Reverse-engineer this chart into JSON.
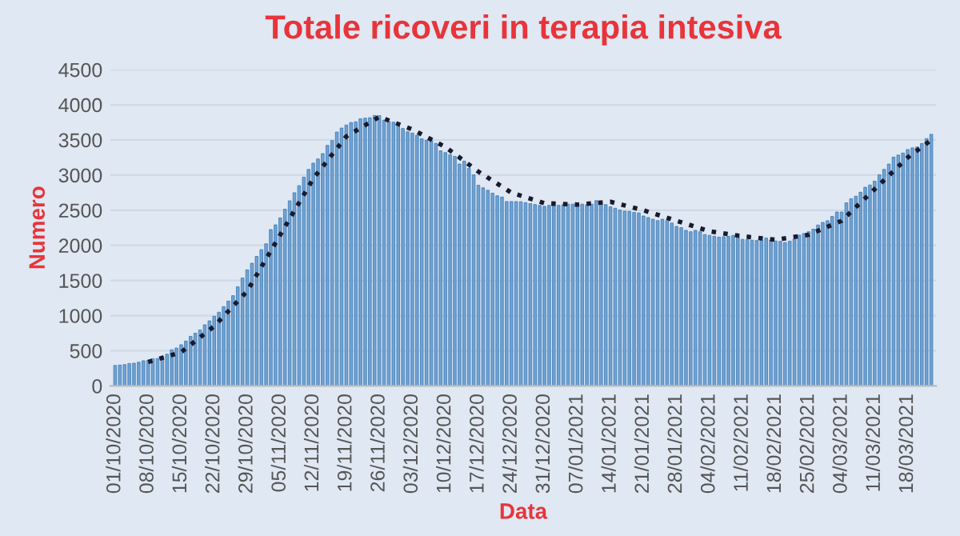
{
  "chart_data": {
    "type": "bar",
    "title": "Totale ricoveri in terapia intesiva",
    "xlabel": "Data",
    "ylabel": "Numero",
    "categories": [
      "01/10/2020",
      null,
      null,
      null,
      null,
      null,
      null,
      "08/10/2020",
      null,
      null,
      null,
      null,
      null,
      null,
      "15/10/2020",
      null,
      null,
      null,
      null,
      null,
      null,
      "22/10/2020",
      null,
      null,
      null,
      null,
      null,
      null,
      "29/10/2020",
      null,
      null,
      null,
      null,
      null,
      null,
      "05/11/2020",
      null,
      null,
      null,
      null,
      null,
      null,
      "12/11/2020",
      null,
      null,
      null,
      null,
      null,
      null,
      "19/11/2020",
      null,
      null,
      null,
      null,
      null,
      null,
      "26/11/2020",
      null,
      null,
      null,
      null,
      null,
      null,
      "03/12/2020",
      null,
      null,
      null,
      null,
      null,
      null,
      "10/12/2020",
      null,
      null,
      null,
      null,
      null,
      null,
      "17/12/2020",
      null,
      null,
      null,
      null,
      null,
      null,
      "24/12/2020",
      null,
      null,
      null,
      null,
      null,
      null,
      "31/12/2020",
      null,
      null,
      null,
      null,
      null,
      null,
      "07/01/2021",
      null,
      null,
      null,
      null,
      null,
      null,
      "14/01/2021",
      null,
      null,
      null,
      null,
      null,
      null,
      "21/01/2021",
      null,
      null,
      null,
      null,
      null,
      null,
      "28/01/2021",
      null,
      null,
      null,
      null,
      null,
      null,
      "04/02/2021",
      null,
      null,
      null,
      null,
      null,
      null,
      "11/02/2021",
      null,
      null,
      null,
      null,
      null,
      null,
      "18/02/2021",
      null,
      null,
      null,
      null,
      null,
      null,
      "25/02/2021",
      null,
      null,
      null,
      null,
      null,
      null,
      "04/03/2021",
      null,
      null,
      null,
      null,
      null,
      null,
      "11/03/2021",
      null,
      null,
      null,
      null,
      null,
      null,
      "18/03/2021",
      null,
      null,
      null,
      null,
      null
    ],
    "series": [
      {
        "color": "#6fa3d6",
        "values": [
          291,
          297,
          303,
          319,
          323,
          337,
          358,
          362,
          387,
          390,
          420,
          452,
          514,
          539,
          586,
          638,
          705,
          750,
          797,
          870,
          926,
          992,
          1049,
          1128,
          1208,
          1284,
          1411,
          1536,
          1651,
          1746,
          1843,
          1939,
          2022,
          2225,
          2292,
          2391,
          2515,
          2634,
          2749,
          2849,
          2971,
          3081,
          3170,
          3230,
          3306,
          3422,
          3492,
          3612,
          3670,
          3712,
          3748,
          3758,
          3801,
          3810,
          3816,
          3848,
          3846,
          3782,
          3762,
          3753,
          3744,
          3663,
          3616,
          3597,
          3567,
          3517,
          3494,
          3492,
          3452,
          3345,
          3320,
          3291,
          3265,
          3158,
          3199,
          3095,
          3003,
          2855,
          2819,
          2784,
          2743,
          2706,
          2687,
          2624,
          2624,
          2623,
          2621,
          2608,
          2594,
          2581,
          2569,
          2555,
          2569,
          2569,
          2569,
          2579,
          2587,
          2587,
          2587,
          2587,
          2579,
          2587,
          2636,
          2587,
          2579,
          2549,
          2528,
          2503,
          2487,
          2483,
          2469,
          2461,
          2418,
          2396,
          2372,
          2352,
          2372,
          2352,
          2317,
          2270,
          2252,
          2214,
          2194,
          2214,
          2194,
          2154,
          2143,
          2130,
          2117,
          2123,
          2128,
          2142,
          2128,
          2085,
          2082,
          2074,
          2069,
          2074,
          2104,
          2074,
          2063,
          2057,
          2040,
          2060,
          2094,
          2146,
          2168,
          2194,
          2231,
          2289,
          2327,
          2351,
          2411,
          2475,
          2475,
          2605,
          2664,
          2700,
          2756,
          2827,
          2859,
          2914,
          3005,
          3081,
          3157,
          3256,
          3285,
          3314,
          3364,
          3387,
          3400,
          3450,
          3520,
          3580
        ]
      },
      {
        "type": "line",
        "color": "#1a1a2e",
        "line_style": "dotted",
        "values": [
          null,
          null,
          null,
          null,
          null,
          null,
          null,
          340,
          null,
          null,
          null,
          null,
          null,
          null,
          480,
          null,
          null,
          null,
          null,
          null,
          null,
          850,
          null,
          null,
          null,
          null,
          null,
          null,
          1350,
          null,
          null,
          null,
          null,
          null,
          null,
          2150,
          null,
          null,
          null,
          null,
          null,
          null,
          2950,
          null,
          null,
          null,
          null,
          null,
          null,
          3550,
          null,
          null,
          null,
          null,
          null,
          null,
          3830,
          null,
          null,
          null,
          null,
          null,
          null,
          3650,
          null,
          null,
          null,
          null,
          null,
          null,
          3400,
          null,
          null,
          null,
          null,
          null,
          null,
          3050,
          null,
          null,
          null,
          null,
          null,
          null,
          2750,
          null,
          null,
          null,
          null,
          null,
          null,
          2600,
          null,
          null,
          null,
          null,
          null,
          null,
          2580,
          null,
          null,
          null,
          null,
          null,
          null,
          2620,
          null,
          null,
          null,
          null,
          null,
          null,
          2500,
          null,
          null,
          null,
          null,
          null,
          null,
          2350,
          null,
          null,
          null,
          null,
          null,
          null,
          2200,
          null,
          null,
          null,
          null,
          null,
          null,
          2130,
          null,
          null,
          null,
          null,
          null,
          null,
          2080,
          null,
          null,
          null,
          null,
          null,
          null,
          2150,
          null,
          null,
          null,
          null,
          null,
          null,
          2350,
          null,
          null,
          null,
          null,
          null,
          null,
          2800,
          null,
          null,
          null,
          null,
          null,
          null,
          3250,
          null,
          null,
          null,
          null,
          3500
        ]
      }
    ],
    "ylim": [
      0,
      4500
    ],
    "yticks": [
      0,
      500,
      1000,
      1500,
      2000,
      2500,
      3000,
      3500,
      4000,
      4500
    ],
    "grid": "y"
  }
}
